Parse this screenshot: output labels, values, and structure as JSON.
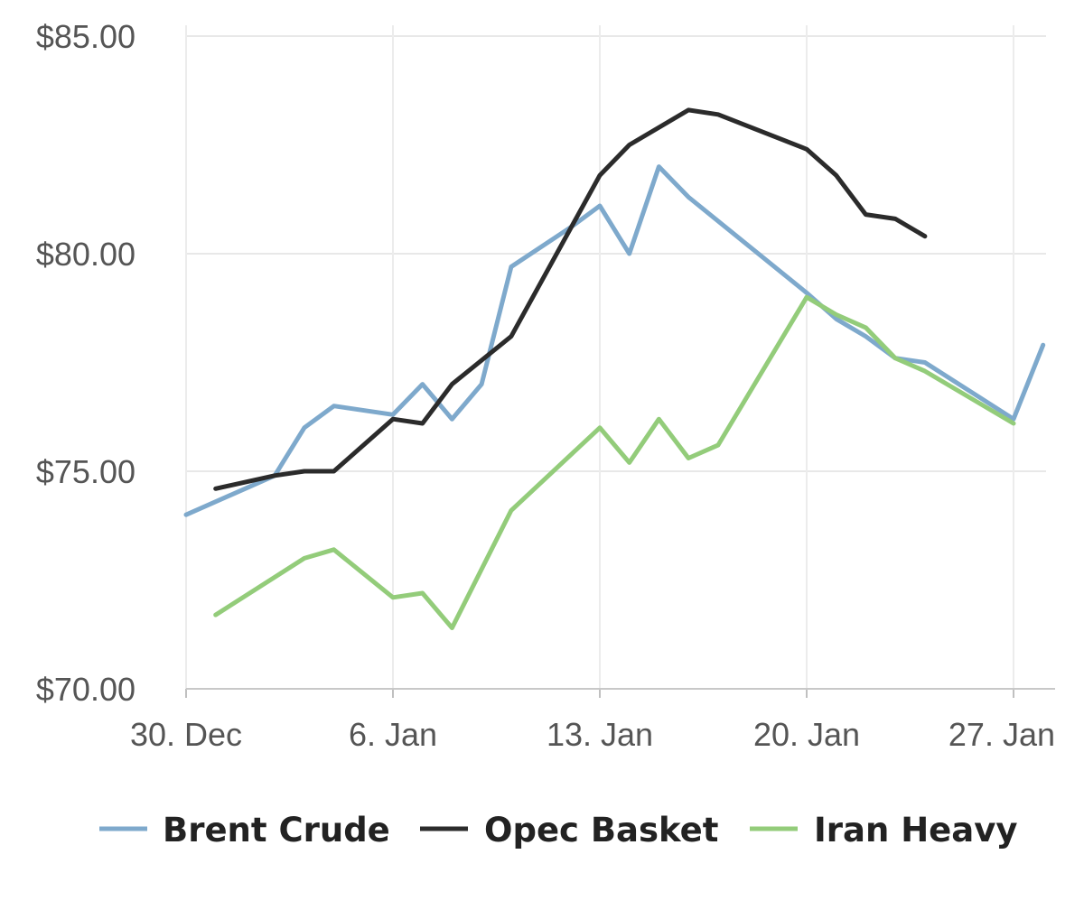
{
  "chart_data": {
    "type": "line",
    "title": "",
    "xlabel": "",
    "ylabel": "",
    "x_ticks": [
      {
        "date": "2019-12-30",
        "label": "30. Dec"
      },
      {
        "date": "2020-01-06",
        "label": "6. Jan"
      },
      {
        "date": "2020-01-13",
        "label": "13. Jan"
      },
      {
        "date": "2020-01-20",
        "label": "20. Jan"
      },
      {
        "date": "2020-01-27",
        "label": "27. Jan"
      }
    ],
    "xlim": [
      "2019-12-30",
      "2020-01-28"
    ],
    "y_ticks": [
      {
        "value": 70,
        "label": "$70.00"
      },
      {
        "value": 75,
        "label": "$75.00"
      },
      {
        "value": 80,
        "label": "$80.00"
      },
      {
        "value": 85,
        "label": "$85.00"
      }
    ],
    "ylim": [
      70,
      85
    ],
    "grid": true,
    "legend_position": "bottom",
    "series": [
      {
        "name": "Brent Crude",
        "color": "#7ea9cc",
        "points": [
          [
            "2019-12-30",
            74.0
          ],
          [
            "2020-01-02",
            74.9
          ],
          [
            "2020-01-03",
            76.0
          ],
          [
            "2020-01-04",
            76.5
          ],
          [
            "2020-01-06",
            76.3
          ],
          [
            "2020-01-07",
            77.0
          ],
          [
            "2020-01-08",
            76.2
          ],
          [
            "2020-01-09",
            77.0
          ],
          [
            "2020-01-10",
            79.7
          ],
          [
            "2020-01-12",
            80.6
          ],
          [
            "2020-01-13",
            81.1
          ],
          [
            "2020-01-14",
            80.0
          ],
          [
            "2020-01-15",
            82.0
          ],
          [
            "2020-01-16",
            81.3
          ],
          [
            "2020-01-20",
            79.1
          ],
          [
            "2020-01-21",
            78.5
          ],
          [
            "2020-01-22",
            78.1
          ],
          [
            "2020-01-23",
            77.6
          ],
          [
            "2020-01-24",
            77.5
          ],
          [
            "2020-01-27",
            76.2
          ],
          [
            "2020-01-28",
            77.9
          ]
        ]
      },
      {
        "name": "Opec Basket",
        "color": "#2b2b2b",
        "points": [
          [
            "2019-12-31",
            74.6
          ],
          [
            "2020-01-02",
            74.9
          ],
          [
            "2020-01-03",
            75.0
          ],
          [
            "2020-01-04",
            75.0
          ],
          [
            "2020-01-06",
            76.2
          ],
          [
            "2020-01-07",
            76.1
          ],
          [
            "2020-01-08",
            77.0
          ],
          [
            "2020-01-10",
            78.1
          ],
          [
            "2020-01-13",
            81.8
          ],
          [
            "2020-01-14",
            82.5
          ],
          [
            "2020-01-16",
            83.3
          ],
          [
            "2020-01-17",
            83.2
          ],
          [
            "2020-01-20",
            82.4
          ],
          [
            "2020-01-21",
            81.8
          ],
          [
            "2020-01-22",
            80.9
          ],
          [
            "2020-01-23",
            80.8
          ],
          [
            "2020-01-24",
            80.4
          ]
        ]
      },
      {
        "name": "Iran Heavy",
        "color": "#93cc7a",
        "points": [
          [
            "2019-12-31",
            71.7
          ],
          [
            "2020-01-03",
            73.0
          ],
          [
            "2020-01-04",
            73.2
          ],
          [
            "2020-01-06",
            72.1
          ],
          [
            "2020-01-07",
            72.2
          ],
          [
            "2020-01-08",
            71.4
          ],
          [
            "2020-01-10",
            74.1
          ],
          [
            "2020-01-13",
            76.0
          ],
          [
            "2020-01-14",
            75.2
          ],
          [
            "2020-01-15",
            76.2
          ],
          [
            "2020-01-16",
            75.3
          ],
          [
            "2020-01-17",
            75.6
          ],
          [
            "2020-01-20",
            79.0
          ],
          [
            "2020-01-21",
            78.6
          ],
          [
            "2020-01-22",
            78.3
          ],
          [
            "2020-01-23",
            77.6
          ],
          [
            "2020-01-24",
            77.3
          ],
          [
            "2020-01-27",
            76.1
          ]
        ]
      }
    ]
  }
}
